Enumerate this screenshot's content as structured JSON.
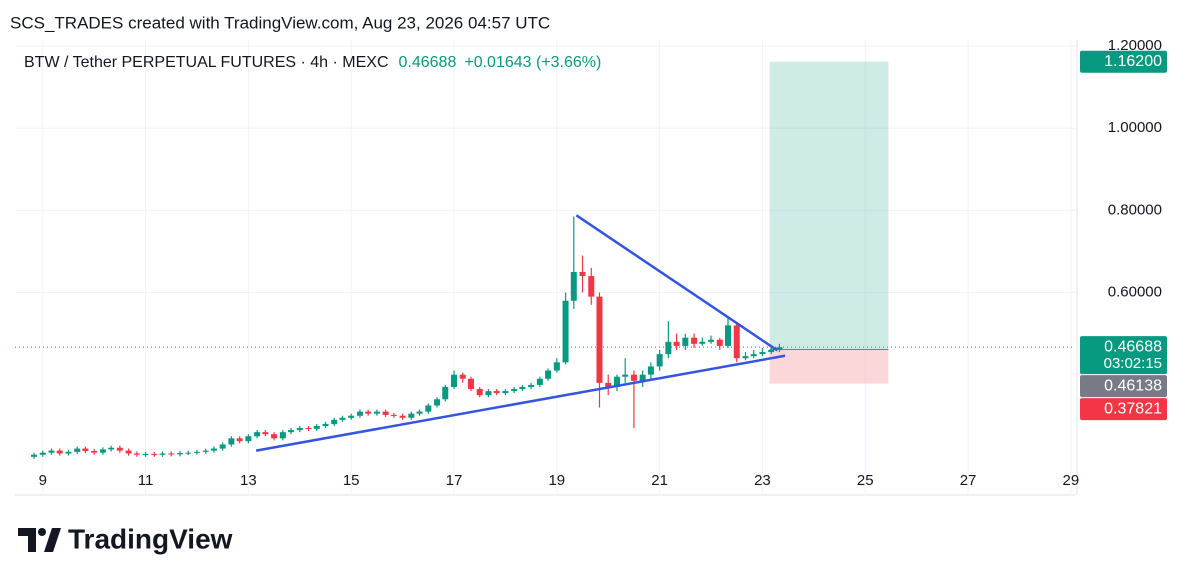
{
  "header": {
    "attribution": "SCS_TRADES created with TradingView.com, Aug 23, 2026 04:57 UTC",
    "logo": "TradingView"
  },
  "chart_data": {
    "type": "candlestick",
    "symbol": "BTW / Tether PERPETUAL FUTURES · 4h · MEXC",
    "last_price": 0.46688,
    "change": "+0.01643 (+3.66%)",
    "up_color": "#089981",
    "down_color": "#f23645",
    "x": [
      8.83,
      9.0,
      9.17,
      9.33,
      9.5,
      9.67,
      9.83,
      10.0,
      10.17,
      10.33,
      10.5,
      10.67,
      10.83,
      11.0,
      11.17,
      11.33,
      11.5,
      11.67,
      11.83,
      12.0,
      12.17,
      12.33,
      12.5,
      12.67,
      12.83,
      13.0,
      13.17,
      13.33,
      13.5,
      13.67,
      13.83,
      14.0,
      14.17,
      14.33,
      14.5,
      14.67,
      14.83,
      15.0,
      15.17,
      15.33,
      15.5,
      15.67,
      15.83,
      16.0,
      16.17,
      16.33,
      16.5,
      16.67,
      16.83,
      17.0,
      17.17,
      17.33,
      17.5,
      17.67,
      17.83,
      18.0,
      18.17,
      18.33,
      18.5,
      18.67,
      18.83,
      19.0,
      19.17,
      19.33,
      19.5,
      19.67,
      19.83,
      20.0,
      20.17,
      20.33,
      20.5,
      20.67,
      20.83,
      21.0,
      21.17,
      21.33,
      21.5,
      21.67,
      21.83,
      22.0,
      22.17,
      22.33,
      22.5,
      22.67,
      22.83,
      23.0,
      23.17,
      23.33
    ],
    "open": [
      0.2,
      0.205,
      0.21,
      0.215,
      0.208,
      0.212,
      0.22,
      0.214,
      0.21,
      0.218,
      0.222,
      0.215,
      0.208,
      0.205,
      0.207,
      0.205,
      0.208,
      0.206,
      0.209,
      0.21,
      0.212,
      0.215,
      0.22,
      0.23,
      0.245,
      0.238,
      0.25,
      0.26,
      0.255,
      0.245,
      0.26,
      0.265,
      0.27,
      0.268,
      0.275,
      0.28,
      0.29,
      0.295,
      0.3,
      0.31,
      0.305,
      0.31,
      0.302,
      0.3,
      0.295,
      0.305,
      0.31,
      0.325,
      0.34,
      0.37,
      0.4,
      0.39,
      0.365,
      0.35,
      0.36,
      0.355,
      0.36,
      0.365,
      0.37,
      0.375,
      0.39,
      0.41,
      0.43,
      0.58,
      0.65,
      0.64,
      0.59,
      0.38,
      0.37,
      0.395,
      0.4,
      0.385,
      0.4,
      0.42,
      0.45,
      0.48,
      0.47,
      0.49,
      0.475,
      0.48,
      0.485,
      0.47,
      0.52,
      0.44,
      0.445,
      0.45,
      0.455,
      0.46
    ],
    "high": [
      0.21,
      0.215,
      0.22,
      0.22,
      0.217,
      0.225,
      0.225,
      0.219,
      0.223,
      0.227,
      0.227,
      0.22,
      0.213,
      0.212,
      0.212,
      0.213,
      0.213,
      0.214,
      0.215,
      0.217,
      0.22,
      0.225,
      0.235,
      0.25,
      0.25,
      0.255,
      0.265,
      0.265,
      0.26,
      0.265,
      0.27,
      0.275,
      0.275,
      0.28,
      0.285,
      0.295,
      0.3,
      0.305,
      0.315,
      0.315,
      0.315,
      0.315,
      0.307,
      0.305,
      0.31,
      0.315,
      0.33,
      0.345,
      0.375,
      0.41,
      0.405,
      0.395,
      0.37,
      0.365,
      0.365,
      0.365,
      0.37,
      0.375,
      0.38,
      0.395,
      0.415,
      0.44,
      0.6,
      0.785,
      0.69,
      0.66,
      0.6,
      0.4,
      0.4,
      0.44,
      0.41,
      0.41,
      0.43,
      0.46,
      0.53,
      0.5,
      0.5,
      0.5,
      0.49,
      0.495,
      0.49,
      0.54,
      0.525,
      0.455,
      0.46,
      0.465,
      0.47,
      0.475
    ],
    "low": [
      0.195,
      0.2,
      0.205,
      0.203,
      0.203,
      0.207,
      0.209,
      0.205,
      0.205,
      0.213,
      0.21,
      0.203,
      0.2,
      0.2,
      0.2,
      0.2,
      0.201,
      0.201,
      0.204,
      0.205,
      0.207,
      0.21,
      0.215,
      0.225,
      0.233,
      0.233,
      0.245,
      0.25,
      0.24,
      0.24,
      0.255,
      0.26,
      0.263,
      0.263,
      0.27,
      0.275,
      0.285,
      0.29,
      0.295,
      0.3,
      0.3,
      0.297,
      0.295,
      0.29,
      0.29,
      0.3,
      0.305,
      0.32,
      0.335,
      0.365,
      0.38,
      0.36,
      0.345,
      0.345,
      0.35,
      0.35,
      0.355,
      0.36,
      0.365,
      0.37,
      0.385,
      0.405,
      0.425,
      0.56,
      0.6,
      0.57,
      0.32,
      0.35,
      0.36,
      0.38,
      0.27,
      0.37,
      0.39,
      0.41,
      0.44,
      0.46,
      0.46,
      0.465,
      0.47,
      0.475,
      0.46,
      0.465,
      0.43,
      0.435,
      0.44,
      0.445,
      0.45,
      0.455
    ],
    "close": [
      0.205,
      0.21,
      0.215,
      0.208,
      0.212,
      0.22,
      0.214,
      0.21,
      0.218,
      0.222,
      0.215,
      0.208,
      0.205,
      0.207,
      0.205,
      0.208,
      0.206,
      0.209,
      0.21,
      0.212,
      0.215,
      0.22,
      0.23,
      0.245,
      0.238,
      0.25,
      0.26,
      0.255,
      0.245,
      0.26,
      0.265,
      0.27,
      0.268,
      0.275,
      0.28,
      0.29,
      0.295,
      0.3,
      0.31,
      0.305,
      0.31,
      0.302,
      0.3,
      0.295,
      0.305,
      0.31,
      0.325,
      0.34,
      0.37,
      0.4,
      0.39,
      0.365,
      0.35,
      0.36,
      0.355,
      0.36,
      0.365,
      0.37,
      0.375,
      0.39,
      0.41,
      0.43,
      0.58,
      0.65,
      0.64,
      0.59,
      0.38,
      0.37,
      0.395,
      0.4,
      0.385,
      0.4,
      0.42,
      0.45,
      0.48,
      0.47,
      0.49,
      0.475,
      0.48,
      0.485,
      0.47,
      0.52,
      0.44,
      0.445,
      0.45,
      0.455,
      0.46,
      0.46688
    ],
    "xlim": [
      8.46,
      29.08
    ],
    "xticks": [
      9,
      11,
      13,
      15,
      17,
      19,
      21,
      23,
      25,
      27,
      29
    ],
    "ylim": [
      0.18,
      1.21
    ],
    "yticks": [
      {
        "value": 1.2,
        "label": "1.20000"
      },
      {
        "value": 1.0,
        "label": "1.00000"
      },
      {
        "value": 0.8,
        "label": "0.80000"
      },
      {
        "value": 0.6,
        "label": "0.60000"
      }
    ],
    "grid": true,
    "trendlines": [
      {
        "color": "#3355e0",
        "x": [
          19.38,
          23.29
        ],
        "y": [
          0.788,
          0.459
        ]
      },
      {
        "color": "#3355e0",
        "x": [
          13.15,
          23.44
        ],
        "y": [
          0.215,
          0.446
        ]
      }
    ],
    "position": {
      "x": [
        23.14,
        25.45
      ],
      "target": 1.162,
      "entry": 0.46138,
      "stop": 0.37821
    },
    "price_labels": [
      {
        "value": 1.162,
        "label": "1.16200",
        "color": "#089981"
      },
      {
        "value": 0.46688,
        "label": "0.46688",
        "sub": "03:02:15",
        "color": "#089981"
      },
      {
        "value": 0.46138,
        "label": "0.46138",
        "color": "#787b86"
      },
      {
        "value": 0.37821,
        "label": "0.37821",
        "color": "#f23645"
      }
    ]
  }
}
